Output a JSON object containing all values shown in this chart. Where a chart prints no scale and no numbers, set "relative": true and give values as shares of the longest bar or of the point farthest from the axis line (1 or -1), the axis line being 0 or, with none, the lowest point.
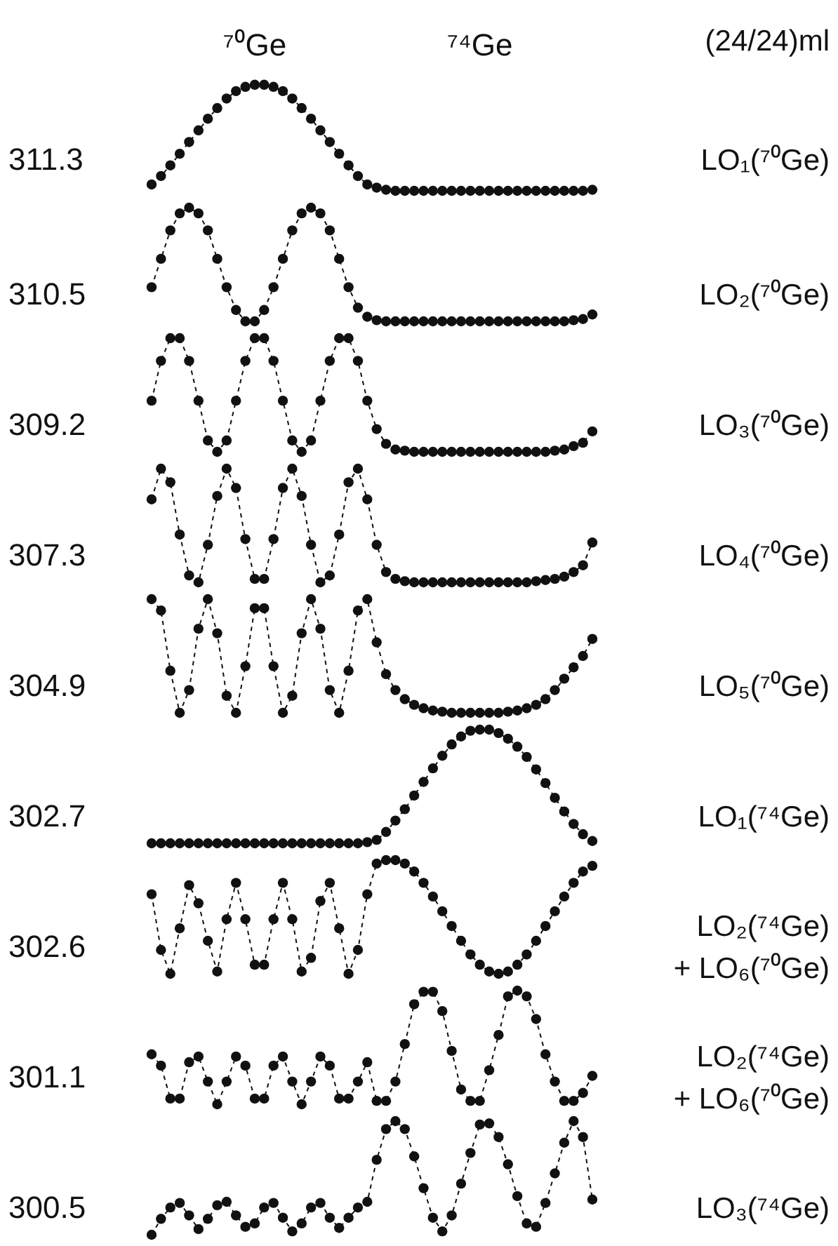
{
  "chart_data": [
    {
      "type": "line",
      "relative": true,
      "marker": "circle",
      "line_style": "dashed",
      "color": "#111111",
      "annotations": [
        "311.3",
        "LO₁(⁷⁰Ge)",
        "(24/24)ml"
      ],
      "categories": [
        null,
        null,
        null,
        null,
        null,
        null,
        null,
        null,
        null,
        null,
        null,
        "⁷⁰Ge",
        null,
        null,
        null,
        null,
        null,
        null,
        null,
        null,
        null,
        null,
        null,
        null,
        null,
        null,
        null,
        null,
        null,
        null,
        null,
        null,
        null,
        null,
        null,
        "⁷⁴Ge",
        null,
        null,
        null,
        null,
        null,
        null,
        null,
        null,
        null,
        null,
        null,
        null
      ],
      "values": [
        0.06,
        0.14,
        0.24,
        0.35,
        0.46,
        0.57,
        0.68,
        0.78,
        0.87,
        0.94,
        0.98,
        1,
        1,
        0.98,
        0.94,
        0.87,
        0.78,
        0.68,
        0.57,
        0.46,
        0.35,
        0.24,
        0.14,
        0.06,
        0.03,
        0.01,
        0,
        0,
        0,
        0,
        0,
        0,
        0,
        0,
        0,
        0,
        0,
        0,
        0,
        0,
        0,
        0,
        0,
        0,
        0,
        0,
        0,
        0.01
      ]
    },
    {
      "type": "line",
      "relative": true,
      "marker": "circle",
      "line_style": "dashed",
      "color": "#111111",
      "annotations": [
        "310.5",
        "LO₂(⁷⁰Ge)"
      ],
      "categories": [
        null,
        null,
        null,
        null,
        null,
        null,
        null,
        null,
        null,
        null,
        null,
        null,
        null,
        null,
        null,
        null,
        null,
        null,
        null,
        null,
        null,
        null,
        null,
        null,
        null,
        null,
        null,
        null,
        null,
        null,
        null,
        null,
        null,
        null,
        null,
        null,
        null,
        null,
        null,
        null,
        null,
        null,
        null,
        null,
        null,
        null,
        null,
        null
      ],
      "values": [
        0.3,
        0.55,
        0.8,
        0.95,
        1,
        0.95,
        0.8,
        0.55,
        0.3,
        0.1,
        0,
        0,
        0.1,
        0.3,
        0.55,
        0.8,
        0.95,
        1,
        0.95,
        0.8,
        0.55,
        0.3,
        0.12,
        0.04,
        0.01,
        0,
        0,
        0,
        0,
        0,
        0,
        0,
        0,
        0,
        0,
        0,
        0,
        0,
        0,
        0,
        0,
        0,
        0,
        0,
        0,
        0.01,
        0.02,
        0.06
      ]
    },
    {
      "type": "line",
      "relative": true,
      "marker": "circle",
      "line_style": "dashed",
      "color": "#111111",
      "annotations": [
        "309.2",
        "LO₃(⁷⁰Ge)"
      ],
      "categories": [
        null,
        null,
        null,
        null,
        null,
        null,
        null,
        null,
        null,
        null,
        null,
        null,
        null,
        null,
        null,
        null,
        null,
        null,
        null,
        null,
        null,
        null,
        null,
        null,
        null,
        null,
        null,
        null,
        null,
        null,
        null,
        null,
        null,
        null,
        null,
        null,
        null,
        null,
        null,
        null,
        null,
        null,
        null,
        null,
        null,
        null,
        null,
        null
      ],
      "values": [
        0.45,
        0.8,
        1,
        1,
        0.8,
        0.45,
        0.1,
        0,
        0.1,
        0.45,
        0.8,
        1,
        1,
        0.8,
        0.45,
        0.1,
        0,
        0.1,
        0.45,
        0.8,
        1,
        1,
        0.8,
        0.45,
        0.2,
        0.07,
        0.02,
        0.01,
        0,
        0,
        0,
        0,
        0,
        0,
        0,
        0,
        0,
        0,
        0,
        0,
        0,
        0,
        0,
        0.01,
        0.02,
        0.05,
        0.08,
        0.18
      ]
    },
    {
      "type": "line",
      "relative": true,
      "marker": "circle",
      "line_style": "dashed",
      "color": "#111111",
      "annotations": [
        "307.3",
        "LO₄(⁷⁰Ge)"
      ],
      "categories": [
        null,
        null,
        null,
        null,
        null,
        null,
        null,
        null,
        null,
        null,
        null,
        null,
        null,
        null,
        null,
        null,
        null,
        null,
        null,
        null,
        null,
        null,
        null,
        null,
        null,
        null,
        null,
        null,
        null,
        null,
        null,
        null,
        null,
        null,
        null,
        null,
        null,
        null,
        null,
        null,
        null,
        null,
        null,
        null,
        null,
        null,
        null,
        null
      ],
      "values": [
        0.73,
        1,
        0.88,
        0.42,
        0.06,
        0,
        0.33,
        0.76,
        1,
        0.83,
        0.38,
        0.03,
        0.03,
        0.38,
        0.83,
        1,
        0.76,
        0.33,
        0,
        0.06,
        0.42,
        0.88,
        1,
        0.73,
        0.33,
        0.09,
        0.03,
        0.01,
        0,
        0,
        0,
        0,
        0,
        0,
        0,
        0,
        0,
        0,
        0,
        0,
        0,
        0.01,
        0.02,
        0.03,
        0.05,
        0.09,
        0.15,
        0.35
      ]
    },
    {
      "type": "line",
      "relative": true,
      "marker": "circle",
      "line_style": "dashed",
      "color": "#111111",
      "annotations": [
        "304.9",
        "LO₅(⁷⁰Ge)"
      ],
      "categories": [
        null,
        null,
        null,
        null,
        null,
        null,
        null,
        null,
        null,
        null,
        null,
        null,
        null,
        null,
        null,
        null,
        null,
        null,
        null,
        null,
        null,
        null,
        null,
        null,
        null,
        null,
        null,
        null,
        null,
        null,
        null,
        null,
        null,
        null,
        null,
        null,
        null,
        null,
        null,
        null,
        null,
        null,
        null,
        null,
        null,
        null,
        null,
        null
      ],
      "values": [
        1,
        0.9,
        0.37,
        0,
        0.2,
        0.74,
        1,
        0.7,
        0.15,
        0,
        0.41,
        0.92,
        0.92,
        0.41,
        0,
        0.15,
        0.7,
        1,
        0.74,
        0.2,
        0,
        0.37,
        0.9,
        1,
        0.62,
        0.34,
        0.2,
        0.12,
        0.07,
        0.04,
        0.02,
        0.01,
        0,
        0,
        0,
        0,
        0,
        0,
        0.01,
        0.02,
        0.04,
        0.07,
        0.12,
        0.2,
        0.3,
        0.4,
        0.5,
        0.65
      ]
    },
    {
      "type": "line",
      "relative": true,
      "marker": "circle",
      "line_style": "dashed",
      "color": "#111111",
      "annotations": [
        "302.7",
        "LO₁(⁷⁴Ge)"
      ],
      "categories": [
        null,
        null,
        null,
        null,
        null,
        null,
        null,
        null,
        null,
        null,
        null,
        null,
        null,
        null,
        null,
        null,
        null,
        null,
        null,
        null,
        null,
        null,
        null,
        null,
        null,
        null,
        null,
        null,
        null,
        null,
        null,
        null,
        null,
        null,
        null,
        null,
        null,
        null,
        null,
        null,
        null,
        null,
        null,
        null,
        null,
        null,
        null,
        null
      ],
      "values": [
        0,
        0,
        0,
        0,
        0,
        0,
        0,
        0,
        0,
        0,
        0,
        0,
        0,
        0,
        0,
        0,
        0,
        0,
        0,
        0,
        0,
        0,
        0,
        0.01,
        0.03,
        0.1,
        0.2,
        0.3,
        0.42,
        0.54,
        0.66,
        0.77,
        0.87,
        0.94,
        0.99,
        1,
        1,
        0.97,
        0.92,
        0.85,
        0.76,
        0.65,
        0.53,
        0.4,
        0.28,
        0.17,
        0.08,
        0.02
      ]
    },
    {
      "type": "line",
      "relative": true,
      "marker": "circle",
      "line_style": "dashed",
      "color": "#111111",
      "annotations": [
        "302.6",
        "LO₂(⁷⁴Ge)",
        "+ LO₆(⁷⁰Ge)"
      ],
      "categories": [
        null,
        null,
        null,
        null,
        null,
        null,
        null,
        null,
        null,
        null,
        null,
        null,
        null,
        null,
        null,
        null,
        null,
        null,
        null,
        null,
        null,
        null,
        null,
        null,
        null,
        null,
        null,
        null,
        null,
        null,
        null,
        null,
        null,
        null,
        null,
        null,
        null,
        null,
        null,
        null,
        null,
        null,
        null,
        null,
        null,
        null,
        null,
        null
      ],
      "values": [
        0.7,
        0.21,
        0,
        0.4,
        0.78,
        0.62,
        0.29,
        0.02,
        0.48,
        0.8,
        0.48,
        0.08,
        0.08,
        0.48,
        0.8,
        0.48,
        0.02,
        0.14,
        0.64,
        0.8,
        0.4,
        0,
        0.21,
        0.7,
        0.97,
        1,
        1,
        0.97,
        0.9,
        0.8,
        0.68,
        0.55,
        0.42,
        0.29,
        0.17,
        0.08,
        0.02,
        0,
        0.02,
        0.08,
        0.17,
        0.29,
        0.42,
        0.55,
        0.68,
        0.8,
        0.9,
        0.95
      ]
    },
    {
      "type": "line",
      "relative": true,
      "marker": "circle",
      "line_style": "dashed",
      "color": "#111111",
      "annotations": [
        "301.1",
        "LO₂(⁷⁴Ge)",
        "+ LO₆(⁷⁰Ge)"
      ],
      "categories": [
        null,
        null,
        null,
        null,
        null,
        null,
        null,
        null,
        null,
        null,
        null,
        null,
        null,
        null,
        null,
        null,
        null,
        null,
        null,
        null,
        null,
        null,
        null,
        null,
        null,
        null,
        null,
        null,
        null,
        null,
        null,
        null,
        null,
        null,
        null,
        null,
        null,
        null,
        null,
        null,
        null,
        null,
        null,
        null,
        null,
        null,
        null,
        null
      ],
      "values": [
        0.44,
        0.34,
        0.05,
        0.05,
        0.37,
        0.42,
        0.2,
        0,
        0.2,
        0.42,
        0.34,
        0.05,
        0.05,
        0.34,
        0.42,
        0.2,
        0,
        0.2,
        0.42,
        0.34,
        0.05,
        0.05,
        0.2,
        0.37,
        0.03,
        0.03,
        0.2,
        0.53,
        0.88,
        0.99,
        0.99,
        0.82,
        0.47,
        0.13,
        0.03,
        0.03,
        0.3,
        0.61,
        0.95,
        1,
        0.95,
        0.75,
        0.44,
        0.2,
        0.03,
        0.03,
        0.1,
        0.25
      ]
    },
    {
      "type": "line",
      "relative": true,
      "marker": "circle",
      "line_style": "dashed",
      "color": "#111111",
      "annotations": [
        "300.5",
        "LO₃(⁷⁴Ge)"
      ],
      "categories": [
        null,
        null,
        null,
        null,
        null,
        null,
        null,
        null,
        null,
        null,
        null,
        null,
        null,
        null,
        null,
        null,
        null,
        null,
        null,
        null,
        null,
        null,
        null,
        null,
        null,
        null,
        null,
        null,
        null,
        null,
        null,
        null,
        null,
        null,
        null,
        null,
        null,
        null,
        null,
        null,
        null,
        null,
        null,
        null,
        null,
        null,
        null,
        null
      ],
      "values": [
        0,
        0.14,
        0.24,
        0.28,
        0.17,
        0.05,
        0.14,
        0.26,
        0.29,
        0.17,
        0.07,
        0.1,
        0.24,
        0.28,
        0.15,
        0.03,
        0.1,
        0.24,
        0.28,
        0.15,
        0.06,
        0.15,
        0.24,
        0.29,
        0.66,
        0.93,
        1,
        0.93,
        0.69,
        0.41,
        0.15,
        0.03,
        0.17,
        0.45,
        0.72,
        0.97,
        0.98,
        0.86,
        0.62,
        0.34,
        0.1,
        0.07,
        0.28,
        0.54,
        0.81,
        1,
        0.86,
        0.31
      ]
    }
  ]
}
